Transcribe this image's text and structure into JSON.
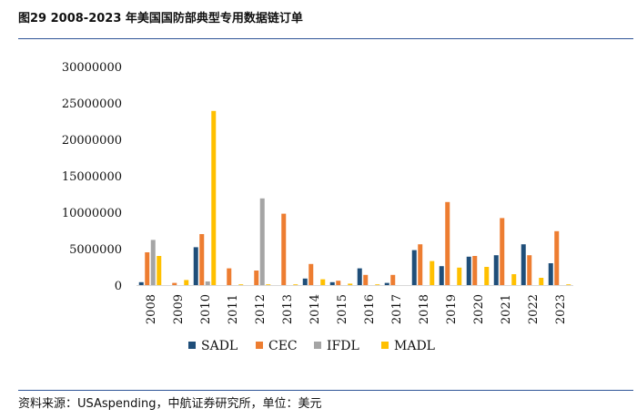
{
  "header": {
    "title": "图29  2008-2023 年美国国防部典型专用数据链订单"
  },
  "footer": {
    "source": "资料来源：USAspending，中航证券研究所，单位：美元"
  },
  "colors": {
    "SADL": "#1f4e79",
    "CEC": "#ed7d31",
    "IFDL": "#a5a5a5",
    "MADL": "#ffc000"
  },
  "chart_data": {
    "type": "bar",
    "categories": [
      "2008",
      "2009",
      "2010",
      "2011",
      "2012",
      "2013",
      "2014",
      "2015",
      "2016",
      "2017",
      "2018",
      "2019",
      "2020",
      "2021",
      "2022",
      "2023"
    ],
    "ylim": [
      0,
      30000000
    ],
    "yticks": [
      "0",
      "5000000",
      "10000000",
      "15000000",
      "20000000",
      "25000000",
      "30000000"
    ],
    "grid": false,
    "legend": "bottom",
    "series": [
      {
        "name": "SADL",
        "values": [
          400000,
          0,
          5200000,
          0,
          0,
          0,
          900000,
          400000,
          2300000,
          300000,
          4800000,
          2600000,
          3900000,
          4100000,
          5600000,
          3000000
        ]
      },
      {
        "name": "CEC",
        "values": [
          4500000,
          300000,
          7000000,
          2300000,
          2000000,
          9800000,
          2900000,
          600000,
          1400000,
          1400000,
          5600000,
          11400000,
          4000000,
          9200000,
          4100000,
          7400000
        ]
      },
      {
        "name": "IFDL",
        "values": [
          6200000,
          0,
          500000,
          0,
          11900000,
          0,
          0,
          0,
          0,
          0,
          0,
          0,
          0,
          0,
          0,
          0
        ]
      },
      {
        "name": "MADL",
        "values": [
          4000000,
          700000,
          23900000,
          100000,
          100000,
          100000,
          800000,
          200000,
          100000,
          0,
          3300000,
          2400000,
          2500000,
          1500000,
          1000000,
          100000
        ]
      }
    ]
  }
}
